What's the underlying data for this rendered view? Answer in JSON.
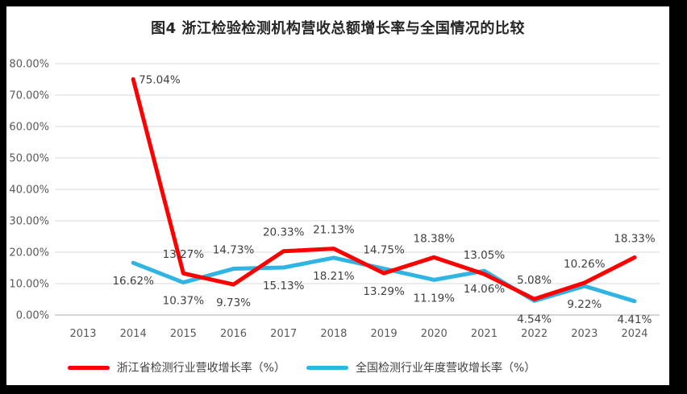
{
  "title": "图4  浙江检验检测机构营收总额增长率与全国情况的比较",
  "colors": {
    "frame_background": "#000000",
    "chart_background": "#FFFFFF",
    "gridline": "#D9D9D9",
    "baseline": "#C9C9C9",
    "axis_text": "#595959",
    "data_label_text": "#404040",
    "title_text": "#262626",
    "series_red": "#FF0000",
    "series_blue": "#30B4E3"
  },
  "chart_data": {
    "type": "line",
    "categories": [
      "2013",
      "2014",
      "2015",
      "2016",
      "2017",
      "2018",
      "2019",
      "2020",
      "2021",
      "2022",
      "2023",
      "2024"
    ],
    "ylim": [
      0,
      80
    ],
    "ytick_step": 10,
    "ytick_labels": [
      "0.00%",
      "10.00%",
      "20.00%",
      "30.00%",
      "40.00%",
      "50.00%",
      "60.00%",
      "70.00%",
      "80.00%"
    ],
    "grid": true,
    "legend_position": "bottom",
    "series": [
      {
        "name": "浙江省检测行业营收增长率（%）",
        "color": "#FF0000",
        "values": [
          null,
          75.04,
          13.27,
          9.73,
          20.33,
          21.13,
          13.29,
          18.38,
          13.05,
          5.08,
          10.26,
          18.33
        ],
        "point_labels": [
          null,
          "75.04%",
          "13.27%",
          "9.73%",
          "20.33%",
          "21.13%",
          "13.29%",
          "18.38%",
          "13.05%",
          "5.08%",
          "10.26%",
          "18.33%"
        ],
        "label_positions": [
          null,
          "right",
          "above",
          "below",
          "above",
          "above",
          "below",
          "above",
          "above",
          "above",
          "above",
          "above"
        ]
      },
      {
        "name": "全国检测行业年度营收增长率（%）",
        "color": "#30B4E3",
        "values": [
          null,
          16.62,
          10.37,
          14.73,
          15.13,
          18.21,
          14.75,
          11.19,
          14.06,
          4.54,
          9.22,
          4.41
        ],
        "point_labels": [
          null,
          "16.62%",
          "10.37%",
          "14.73%",
          "15.13%",
          "18.21%",
          "14.75%",
          "11.19%",
          "14.06%",
          "4.54%",
          "9.22%",
          "4.41%"
        ],
        "label_positions": [
          null,
          "below",
          "below",
          "above",
          "below",
          "below",
          "above",
          "below",
          "below",
          "below",
          "below",
          "below"
        ]
      }
    ]
  }
}
